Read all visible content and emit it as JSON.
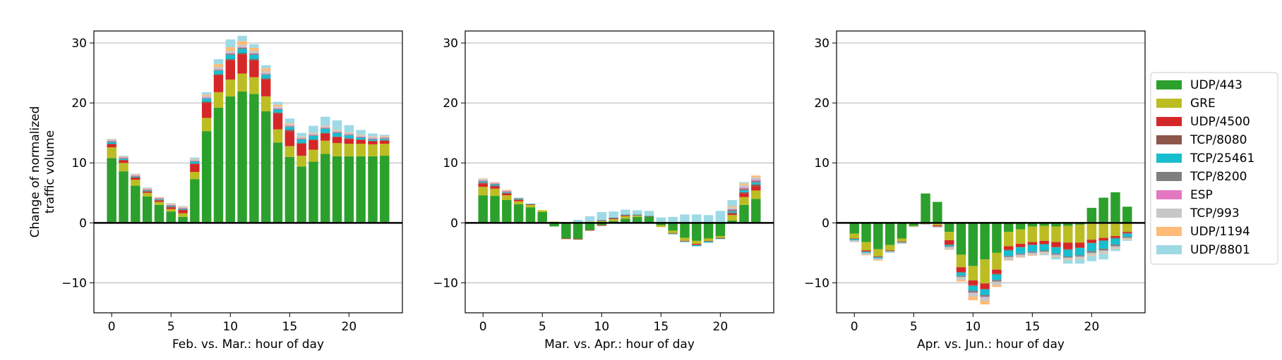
{
  "colors": {
    "UDP/443": "#2ca02c",
    "GRE": "#bcbd22",
    "UDP/4500": "#d62728",
    "TCP/8080": "#8c564b",
    "TCP/25461": "#17becf",
    "TCP/8200": "#7f7f7f",
    "ESP": "#e377c2",
    "TCP/993": "#c7c7c7",
    "UDP/1194": "#ffbb78",
    "UDP/8801": "#9edae5"
  },
  "legend": [
    "UDP/443",
    "GRE",
    "UDP/4500",
    "TCP/8080",
    "TCP/25461",
    "TCP/8200",
    "ESP",
    "TCP/993",
    "UDP/1194",
    "UDP/8801"
  ],
  "chart_data": [
    {
      "type": "bar",
      "stacked": true,
      "xlabel": "Feb. vs. Mar.: hour of day",
      "ylabel": "Change of normalized traffic volume",
      "xlim": [
        -1.5,
        24.5
      ],
      "ylim": [
        -15,
        32
      ],
      "xticks": [
        0,
        5,
        10,
        15,
        20
      ],
      "yticks": [
        -10,
        0,
        10,
        20,
        30
      ],
      "grid": "horizontal",
      "x": [
        0,
        1,
        2,
        3,
        4,
        5,
        6,
        7,
        8,
        9,
        10,
        11,
        12,
        13,
        14,
        15,
        16,
        17,
        18,
        19,
        20,
        21,
        22,
        23
      ],
      "series": [
        {
          "name": "UDP/443",
          "values": [
            10.8,
            8.6,
            6.2,
            4.4,
            3.0,
            1.9,
            1.0,
            7.3,
            15.3,
            19.2,
            21.1,
            21.9,
            21.5,
            18.6,
            13.4,
            11.0,
            9.4,
            10.2,
            11.5,
            11.1,
            11.1,
            11.1,
            11.1,
            11.2
          ]
        },
        {
          "name": "GRE",
          "values": [
            1.8,
            1.4,
            1.0,
            0.6,
            0.5,
            0.4,
            0.6,
            1.2,
            2.2,
            2.6,
            2.8,
            3.0,
            2.8,
            2.5,
            2.2,
            1.8,
            1.8,
            2.0,
            2.2,
            2.2,
            2.1,
            2.1,
            2.0,
            2.0
          ]
        },
        {
          "name": "UDP/4500",
          "values": [
            0.5,
            0.4,
            0.3,
            0.2,
            0.2,
            0.3,
            0.5,
            1.3,
            2.5,
            2.8,
            3.2,
            3.2,
            2.8,
            2.8,
            2.6,
            2.5,
            2.0,
            1.6,
            1.2,
            1.0,
            0.8,
            0.6,
            0.5,
            0.5
          ]
        },
        {
          "name": "TCP/8080",
          "values": [
            0.1,
            0.1,
            0.1,
            0.1,
            0.1,
            0.1,
            0.1,
            0.1,
            0.2,
            0.2,
            0.2,
            0.2,
            0.2,
            0.2,
            0.2,
            0.2,
            0.1,
            0.1,
            0.1,
            0.1,
            0.1,
            0.1,
            0.1,
            0.1
          ]
        },
        {
          "name": "TCP/25461",
          "values": [
            0.3,
            0.2,
            0.1,
            0.1,
            0.1,
            0.1,
            0.1,
            0.3,
            0.5,
            0.6,
            0.7,
            0.7,
            0.7,
            0.6,
            0.5,
            0.5,
            0.6,
            0.6,
            0.7,
            0.6,
            0.5,
            0.3,
            0.2,
            0.2
          ]
        },
        {
          "name": "TCP/8200",
          "values": [
            0.1,
            0.1,
            0.1,
            0.1,
            0.1,
            0.1,
            0.1,
            0.1,
            0.1,
            0.1,
            0.2,
            0.2,
            0.2,
            0.1,
            0.1,
            0.1,
            0.1,
            0.1,
            0.1,
            0.1,
            0.1,
            0.1,
            0.1,
            0.1
          ]
        },
        {
          "name": "ESP",
          "values": [
            0.1,
            0.1,
            0.1,
            0.1,
            0.1,
            0.1,
            0.1,
            0.1,
            0.1,
            0.1,
            0.1,
            0.1,
            0.1,
            0.1,
            0.1,
            0.1,
            0.1,
            0.1,
            0.1,
            0.1,
            0.1,
            0.1,
            0.1,
            0.1
          ]
        },
        {
          "name": "TCP/993",
          "values": [
            0.1,
            0.1,
            0.1,
            0.1,
            0.1,
            0.1,
            0.1,
            0.1,
            0.3,
            0.4,
            0.4,
            0.4,
            0.4,
            0.4,
            0.3,
            0.2,
            0.2,
            0.2,
            0.2,
            0.2,
            0.2,
            0.2,
            0.2,
            0.2
          ]
        },
        {
          "name": "UDP/1194",
          "values": [
            0.1,
            0.1,
            0.1,
            0.1,
            0.1,
            0.1,
            0.1,
            0.1,
            0.2,
            0.5,
            0.6,
            0.6,
            0.5,
            0.5,
            0.3,
            0.2,
            0.1,
            0.1,
            0.1,
            0.1,
            0.1,
            0.1,
            0.1,
            0.1
          ]
        },
        {
          "name": "UDP/8801",
          "values": [
            0.1,
            0.1,
            0.1,
            0.1,
            0.0,
            0.1,
            0.1,
            0.3,
            0.4,
            0.8,
            1.3,
            0.9,
            0.6,
            0.5,
            0.5,
            0.8,
            0.6,
            1.2,
            1.5,
            1.6,
            1.2,
            0.8,
            0.5,
            0.2
          ]
        }
      ]
    },
    {
      "type": "bar",
      "stacked": true,
      "xlabel": "Mar. vs. Apr.: hour of day",
      "ylabel": "",
      "xlim": [
        -1.5,
        24.5
      ],
      "ylim": [
        -15,
        32
      ],
      "xticks": [
        0,
        5,
        10,
        15,
        20
      ],
      "yticks": [
        -10,
        0,
        10,
        20,
        30
      ],
      "grid": "horizontal",
      "x": [
        0,
        1,
        2,
        3,
        4,
        5,
        6,
        7,
        8,
        9,
        10,
        11,
        12,
        13,
        14,
        15,
        16,
        17,
        18,
        19,
        20,
        21,
        22,
        23
      ],
      "series": [
        {
          "name": "UDP/443",
          "values": [
            4.6,
            4.5,
            3.8,
            3.1,
            2.6,
            1.8,
            -0.6,
            -2.6,
            -2.7,
            -1.2,
            -0.4,
            0.3,
            0.7,
            1.0,
            1.0,
            -0.4,
            -1.3,
            -2.5,
            -3.0,
            -2.6,
            -2.2,
            0.4,
            3.0,
            4.0
          ]
        },
        {
          "name": "GRE",
          "values": [
            1.4,
            1.2,
            0.8,
            0.5,
            0.4,
            0.3,
            0.2,
            0.0,
            0.1,
            0.2,
            0.3,
            0.3,
            0.4,
            0.2,
            -0.1,
            -0.3,
            -0.4,
            -0.5,
            -0.5,
            -0.4,
            -0.3,
            0.9,
            1.3,
            1.4
          ]
        },
        {
          "name": "UDP/4500",
          "values": [
            0.6,
            0.4,
            0.3,
            0.2,
            0.1,
            0.0,
            0.0,
            -0.1,
            -0.1,
            -0.1,
            -0.1,
            0.1,
            0.1,
            0.0,
            0.0,
            0.0,
            -0.1,
            -0.1,
            -0.2,
            -0.1,
            -0.1,
            0.2,
            0.6,
            0.7
          ]
        },
        {
          "name": "TCP/8080",
          "values": [
            0.1,
            0.1,
            0.1,
            0.1,
            0.0,
            0.0,
            0.0,
            0.0,
            0.0,
            0.0,
            0.1,
            0.1,
            0.1,
            0.1,
            0.1,
            0.0,
            0.0,
            0.0,
            0.0,
            0.0,
            0.0,
            0.2,
            0.2,
            0.3
          ]
        },
        {
          "name": "TCP/25461",
          "values": [
            0.2,
            0.2,
            0.1,
            0.1,
            0.1,
            0.0,
            0.0,
            0.0,
            0.0,
            0.0,
            0.1,
            0.1,
            0.1,
            0.1,
            0.1,
            0.0,
            -0.1,
            -0.1,
            -0.2,
            -0.2,
            -0.1,
            0.2,
            0.3,
            0.3
          ]
        },
        {
          "name": "TCP/8200",
          "values": [
            0.1,
            0.1,
            0.1,
            0.1,
            0.0,
            0.0,
            0.0,
            0.0,
            0.0,
            0.0,
            0.0,
            0.0,
            0.0,
            0.0,
            0.0,
            0.0,
            0.0,
            0.0,
            0.0,
            0.0,
            0.0,
            0.3,
            0.3,
            0.3
          ]
        },
        {
          "name": "ESP",
          "values": [
            0.1,
            0.1,
            0.1,
            0.0,
            0.0,
            0.0,
            0.0,
            0.0,
            0.0,
            0.0,
            0.0,
            0.0,
            0.0,
            0.0,
            0.0,
            0.0,
            0.0,
            0.0,
            0.0,
            0.0,
            0.0,
            0.1,
            0.2,
            0.2
          ]
        },
        {
          "name": "TCP/993",
          "values": [
            0.2,
            0.1,
            0.1,
            0.1,
            0.0,
            0.0,
            0.0,
            0.0,
            0.0,
            0.0,
            0.1,
            0.1,
            0.1,
            0.1,
            0.1,
            0.0,
            0.0,
            0.0,
            0.0,
            0.0,
            0.0,
            0.3,
            0.4,
            0.4
          ]
        },
        {
          "name": "UDP/1194",
          "values": [
            0.1,
            0.1,
            0.1,
            0.0,
            0.0,
            0.0,
            0.0,
            0.0,
            0.0,
            0.0,
            0.0,
            0.0,
            0.0,
            0.0,
            0.0,
            0.0,
            0.0,
            0.0,
            0.0,
            0.0,
            0.0,
            0.2,
            0.3,
            0.3
          ]
        },
        {
          "name": "UDP/8801",
          "values": [
            0.0,
            0.0,
            0.0,
            0.0,
            0.0,
            0.0,
            0.0,
            0.0,
            0.4,
            0.9,
            1.2,
            0.9,
            0.7,
            0.6,
            0.7,
            0.9,
            1.0,
            1.4,
            1.4,
            1.3,
            2.0,
            1.0,
            0.2,
            0.0
          ]
        }
      ]
    },
    {
      "type": "bar",
      "stacked": true,
      "xlabel": "Apr. vs. Jun.: hour of day",
      "ylabel": "",
      "xlim": [
        -1.5,
        24.5
      ],
      "ylim": [
        -15,
        32
      ],
      "xticks": [
        0,
        5,
        10,
        15,
        20
      ],
      "yticks": [
        -10,
        0,
        10,
        20,
        30
      ],
      "grid": "horizontal",
      "x": [
        0,
        1,
        2,
        3,
        4,
        5,
        6,
        7,
        8,
        9,
        10,
        11,
        12,
        13,
        14,
        15,
        16,
        17,
        18,
        19,
        20,
        21,
        22,
        23
      ],
      "series": [
        {
          "name": "UDP/443",
          "values": [
            -1.8,
            -3.2,
            -4.4,
            -3.7,
            -2.6,
            -0.5,
            4.9,
            3.5,
            -1.5,
            -5.3,
            -7.2,
            -6.1,
            -5.0,
            -1.5,
            -1.1,
            -0.6,
            -0.5,
            -0.6,
            -0.5,
            -0.3,
            2.5,
            4.2,
            5.1,
            2.7
          ]
        },
        {
          "name": "GRE",
          "values": [
            -0.8,
            -1.4,
            -1.2,
            -0.9,
            -0.5,
            -0.1,
            -0.2,
            -0.4,
            -1.4,
            -2.1,
            -2.4,
            -4.0,
            -2.8,
            -2.4,
            -2.4,
            -2.6,
            -2.5,
            -2.6,
            -2.8,
            -3.0,
            -2.8,
            -2.5,
            -2.2,
            -1.5
          ]
        },
        {
          "name": "UDP/4500",
          "values": [
            -0.1,
            -0.2,
            -0.1,
            -0.1,
            -0.1,
            0.0,
            0.0,
            -0.2,
            -0.7,
            -0.8,
            -0.8,
            -0.9,
            -0.7,
            -0.6,
            -0.5,
            -0.4,
            -0.5,
            -0.8,
            -1.1,
            -0.8,
            -0.5,
            -0.4,
            -0.3,
            -0.2
          ]
        },
        {
          "name": "TCP/8080",
          "values": [
            0.0,
            0.0,
            0.0,
            0.0,
            0.0,
            0.0,
            0.0,
            0.0,
            -0.1,
            -0.1,
            -0.1,
            -0.1,
            -0.1,
            -0.1,
            -0.1,
            -0.1,
            -0.1,
            -0.1,
            -0.1,
            -0.1,
            -0.1,
            -0.1,
            -0.1,
            -0.1
          ]
        },
        {
          "name": "TCP/25461",
          "values": [
            -0.2,
            -0.2,
            -0.2,
            -0.1,
            -0.1,
            0.0,
            0.0,
            0.0,
            -0.2,
            -0.5,
            -0.8,
            -0.9,
            -0.9,
            -0.9,
            -1.0,
            -1.1,
            -1.0,
            -1.0,
            -1.1,
            -1.2,
            -1.3,
            -1.3,
            -1.0,
            -0.5
          ]
        },
        {
          "name": "TCP/8200",
          "values": [
            0.0,
            0.0,
            0.0,
            0.0,
            0.0,
            0.0,
            0.0,
            0.0,
            -0.1,
            -0.2,
            -0.3,
            -0.3,
            -0.3,
            -0.2,
            -0.2,
            -0.2,
            -0.2,
            -0.2,
            -0.2,
            -0.2,
            -0.3,
            -0.3,
            -0.3,
            -0.2
          ]
        },
        {
          "name": "ESP",
          "values": [
            0.0,
            0.0,
            0.0,
            0.0,
            0.0,
            0.0,
            0.0,
            0.0,
            0.0,
            0.0,
            -0.1,
            -0.1,
            0.0,
            0.0,
            0.0,
            0.0,
            0.0,
            0.0,
            0.0,
            0.0,
            0.0,
            0.0,
            0.0,
            0.0
          ]
        },
        {
          "name": "TCP/993",
          "values": [
            -0.3,
            -0.3,
            -0.3,
            -0.2,
            -0.2,
            -0.1,
            -0.1,
            -0.2,
            -0.4,
            -0.5,
            -0.6,
            -0.6,
            -0.6,
            -0.5,
            -0.4,
            -0.4,
            -0.3,
            -0.3,
            -0.3,
            -0.3,
            -0.4,
            -0.4,
            -0.3,
            -0.2
          ]
        },
        {
          "name": "UDP/1194",
          "values": [
            0.0,
            -0.1,
            -0.1,
            0.0,
            0.0,
            0.0,
            0.0,
            0.0,
            -0.1,
            -0.3,
            -0.6,
            -0.6,
            -0.3,
            -0.1,
            -0.1,
            -0.1,
            -0.1,
            -0.1,
            -0.1,
            -0.1,
            -0.1,
            -0.1,
            -0.1,
            -0.1
          ]
        },
        {
          "name": "UDP/8801",
          "values": [
            0.0,
            0.0,
            0.0,
            0.0,
            0.0,
            0.0,
            0.0,
            0.0,
            0.0,
            0.0,
            0.0,
            0.0,
            0.0,
            0.0,
            0.0,
            0.0,
            -0.2,
            -0.4,
            -0.6,
            -0.8,
            -0.9,
            -1.0,
            -0.4,
            -0.2
          ]
        }
      ]
    }
  ]
}
